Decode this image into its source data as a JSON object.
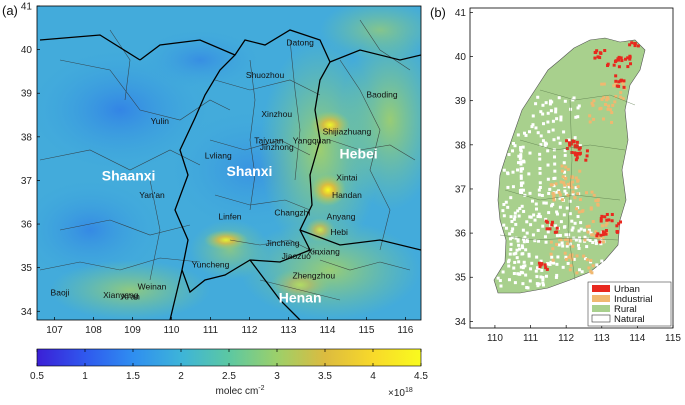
{
  "panel_a": {
    "label": "(a)",
    "lon_ticks": [
      "107",
      "108",
      "109",
      "110",
      "111",
      "112",
      "113",
      "114",
      "115",
      "116"
    ],
    "lat_ticks": [
      "41",
      "40",
      "39",
      "38",
      "37",
      "36",
      "35",
      "34"
    ],
    "cities": [
      {
        "name": "Datong",
        "lon": 113.3,
        "lat": 40.1
      },
      {
        "name": "Shuozhou",
        "lon": 112.4,
        "lat": 39.35
      },
      {
        "name": "Baoding",
        "lon": 115.4,
        "lat": 38.9
      },
      {
        "name": "Xinzhou",
        "lon": 112.7,
        "lat": 38.45
      },
      {
        "name": "Yulin",
        "lon": 109.7,
        "lat": 38.3
      },
      {
        "name": "Yangquan",
        "lon": 113.6,
        "lat": 37.85
      },
      {
        "name": "Shijiazhuang",
        "lon": 114.5,
        "lat": 38.05
      },
      {
        "name": "Taiyuan",
        "lon": 112.5,
        "lat": 37.85
      },
      {
        "name": "Lvliang",
        "lon": 111.2,
        "lat": 37.5
      },
      {
        "name": "Jinzhong",
        "lon": 112.7,
        "lat": 37.7
      },
      {
        "name": "Xintai",
        "lon": 114.5,
        "lat": 37.0
      },
      {
        "name": "Yan'an",
        "lon": 109.5,
        "lat": 36.6
      },
      {
        "name": "Changzhi",
        "lon": 113.1,
        "lat": 36.2
      },
      {
        "name": "Handan",
        "lon": 114.5,
        "lat": 36.6
      },
      {
        "name": "Linfen",
        "lon": 111.5,
        "lat": 36.1
      },
      {
        "name": "Anyang",
        "lon": 114.35,
        "lat": 36.1
      },
      {
        "name": "Hebi",
        "lon": 114.3,
        "lat": 35.75
      },
      {
        "name": "Jincheng",
        "lon": 112.85,
        "lat": 35.5
      },
      {
        "name": "Xinxiang",
        "lon": 113.9,
        "lat": 35.3
      },
      {
        "name": "Yuncheng",
        "lon": 111.0,
        "lat": 35.0
      },
      {
        "name": "Jiaozuo",
        "lon": 113.2,
        "lat": 35.2
      },
      {
        "name": "Weinan",
        "lon": 109.5,
        "lat": 34.5
      },
      {
        "name": "Xianyang",
        "lon": 108.7,
        "lat": 34.3
      },
      {
        "name": "Zhengzhou",
        "lon": 113.65,
        "lat": 34.75
      },
      {
        "name": "Baoji",
        "lon": 107.14,
        "lat": 34.36
      },
      {
        "name": "Xi'an",
        "lon": 108.95,
        "lat": 34.27
      }
    ],
    "provinces": [
      {
        "name": "Shaanxi",
        "lon": 108.9,
        "lat": 37.0
      },
      {
        "name": "Shanxi",
        "lon": 112.0,
        "lat": 37.1
      },
      {
        "name": "Hebei",
        "lon": 114.8,
        "lat": 37.5
      },
      {
        "name": "Henan",
        "lon": 113.3,
        "lat": 34.2
      }
    ],
    "colorbar": {
      "ticks": [
        "0.5",
        "1",
        "1.5",
        "2",
        "2.5",
        "3",
        "3.5",
        "4",
        "4.5"
      ],
      "label": "molec cm",
      "label_exp": "-2",
      "scale_base": "×10",
      "scale_exp": "18",
      "colors": [
        "#3b1fd6",
        "#2f58ee",
        "#2f8ef0",
        "#3db4d9",
        "#5cc8a2",
        "#9cd06a",
        "#dcbb3f",
        "#f8d92a",
        "#f9fb1e"
      ]
    }
  },
  "panel_b": {
    "label": "(b)",
    "lon_ticks": [
      "110",
      "111",
      "112",
      "113",
      "114",
      "115"
    ],
    "lat_ticks": [
      "41",
      "40",
      "39",
      "38",
      "37",
      "36",
      "35",
      "34"
    ],
    "legend": [
      {
        "label": "Urban",
        "color": "#e8281e"
      },
      {
        "label": "Industrial",
        "color": "#f0b870"
      },
      {
        "label": "Rural",
        "color": "#a8d08d"
      },
      {
        "label": "Natural",
        "color": "#ffffff"
      }
    ]
  }
}
